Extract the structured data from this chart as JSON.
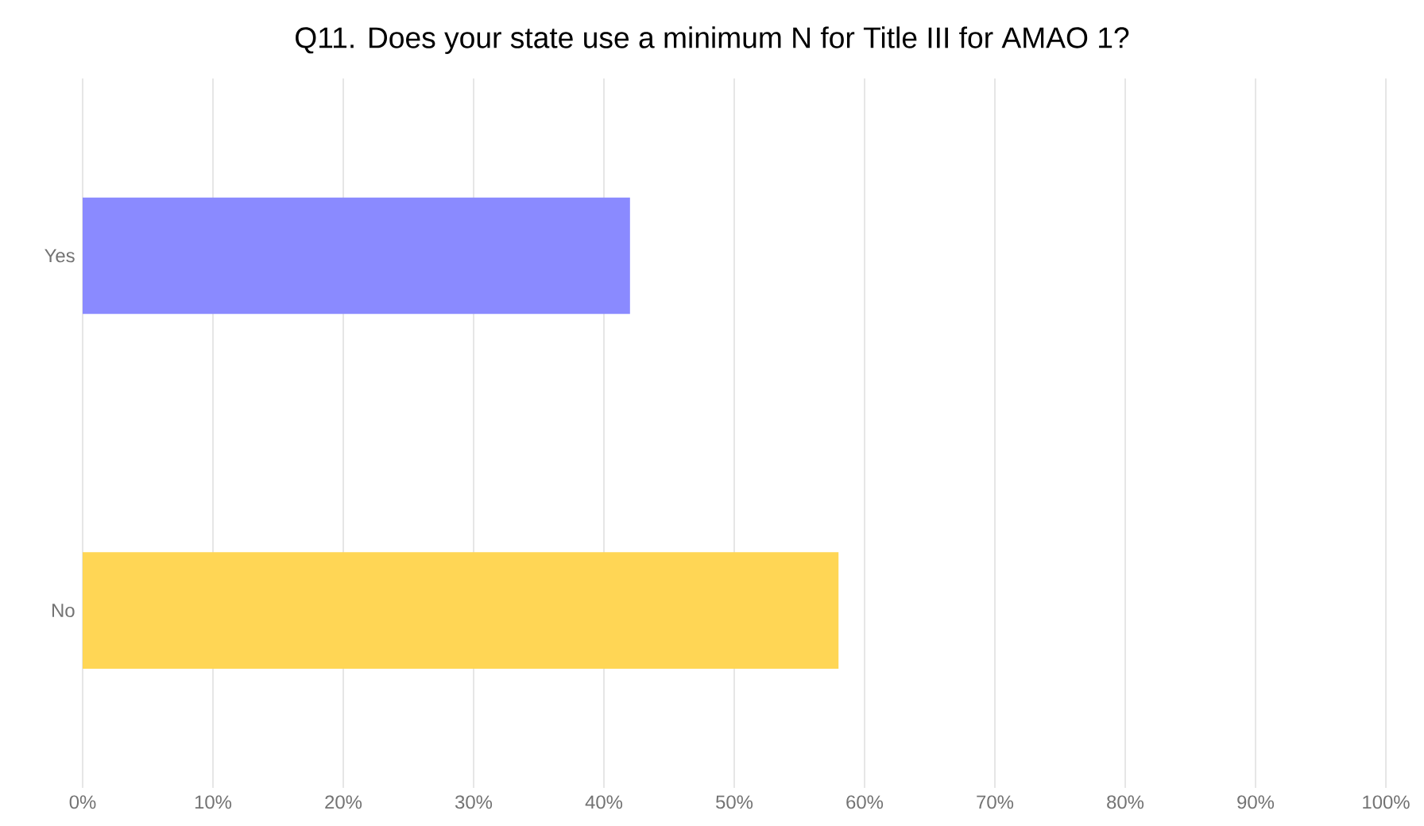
{
  "chart_data": {
    "type": "bar",
    "orientation": "horizontal",
    "title": "Q11. Does your state use a minimum N for Title III for AMAO 1?",
    "categories": [
      "Yes",
      "No"
    ],
    "values": [
      42,
      58
    ],
    "colors": [
      "#8a8aff",
      "#ffd655"
    ],
    "xlim": [
      0,
      100
    ],
    "xticks": [
      {
        "value": 0,
        "label": "0%"
      },
      {
        "value": 10,
        "label": "10%"
      },
      {
        "value": 20,
        "label": "20%"
      },
      {
        "value": 30,
        "label": "30%"
      },
      {
        "value": 40,
        "label": "40%"
      },
      {
        "value": 50,
        "label": "50%"
      },
      {
        "value": 60,
        "label": "60%"
      },
      {
        "value": 70,
        "label": "70%"
      },
      {
        "value": 80,
        "label": "80%"
      },
      {
        "value": 90,
        "label": "90%"
      },
      {
        "value": 100,
        "label": "100%"
      }
    ],
    "grid": "x"
  }
}
